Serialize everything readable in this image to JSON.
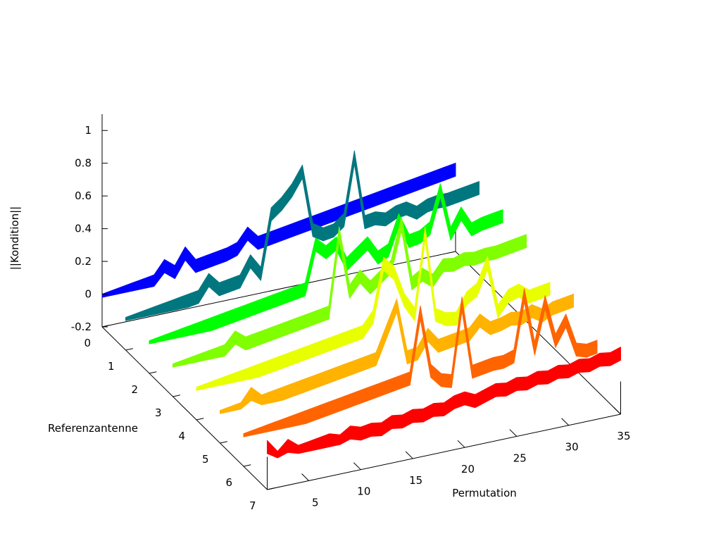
{
  "chart_data": {
    "type": "area",
    "title": "",
    "xlabel": "Permutation",
    "ylabel": "Referenzantenne",
    "zlabel": "||Kondition||",
    "x_ticks": [
      "5",
      "10",
      "15",
      "20",
      "25",
      "30",
      "35"
    ],
    "y_ticks": [
      "0",
      "1",
      "2",
      "3",
      "4",
      "5",
      "6",
      "7"
    ],
    "z_ticks": [
      "-0.2",
      "0",
      "0.2",
      "0.4",
      "0.6",
      "0.8",
      "1"
    ],
    "xlim": [
      1,
      35
    ],
    "ylim": [
      0,
      7
    ],
    "zlim": [
      -0.2,
      1.1
    ],
    "grid": false,
    "legend": "none",
    "series": [
      {
        "ref": 0,
        "color": "#0000ff",
        "values": [
          0.0,
          0.01,
          0.02,
          0.03,
          0.04,
          0.05,
          0.13,
          0.08,
          0.18,
          0.09,
          0.1,
          0.11,
          0.12,
          0.14,
          0.22,
          0.15,
          0.16,
          0.17,
          0.18,
          0.19,
          0.2,
          0.21,
          0.22,
          0.23,
          0.24,
          0.25,
          0.26,
          0.27,
          0.28,
          0.29,
          0.3,
          0.31,
          0.32,
          0.33,
          0.34
        ]
      },
      {
        "ref": 1,
        "color": "#00777f",
        "values": [
          0.0,
          0.01,
          0.02,
          0.03,
          0.04,
          0.05,
          0.06,
          0.07,
          0.16,
          0.09,
          0.1,
          0.11,
          0.22,
          0.13,
          0.48,
          0.53,
          0.6,
          0.7,
          0.33,
          0.29,
          0.3,
          0.35,
          0.72,
          0.31,
          0.32,
          0.3,
          0.33,
          0.34,
          0.3,
          0.33,
          0.34,
          0.34,
          0.35,
          0.36,
          0.37
        ]
      },
      {
        "ref": 2,
        "color": "#00ff00",
        "values": [
          0.0,
          0.01,
          0.02,
          0.03,
          0.04,
          0.05,
          0.06,
          0.07,
          0.08,
          0.09,
          0.1,
          0.11,
          0.12,
          0.13,
          0.14,
          0.15,
          0.41,
          0.35,
          0.39,
          0.25,
          0.3,
          0.35,
          0.25,
          0.28,
          0.45,
          0.31,
          0.32,
          0.36,
          0.58,
          0.3,
          0.41,
          0.3,
          0.32,
          0.33,
          0.34
        ]
      },
      {
        "ref": 3,
        "color": "#7fff00",
        "values": [
          0.0,
          0.01,
          0.02,
          0.03,
          0.04,
          0.05,
          0.12,
          0.07,
          0.08,
          0.09,
          0.1,
          0.11,
          0.12,
          0.13,
          0.14,
          0.15,
          0.62,
          0.25,
          0.33,
          0.25,
          0.3,
          0.35,
          0.6,
          0.22,
          0.26,
          0.21,
          0.29,
          0.28,
          0.3,
          0.29,
          0.3,
          0.3,
          0.31,
          0.32,
          0.33
        ]
      },
      {
        "ref": 4,
        "color": "#e8ff00",
        "values": [
          0.0,
          0.01,
          0.02,
          0.03,
          0.04,
          0.05,
          0.06,
          0.07,
          0.08,
          0.09,
          0.1,
          0.11,
          0.12,
          0.13,
          0.14,
          0.15,
          0.16,
          0.24,
          0.55,
          0.48,
          0.3,
          0.2,
          0.68,
          0.17,
          0.13,
          0.12,
          0.23,
          0.27,
          0.42,
          0.11,
          0.19,
          0.21,
          0.16,
          0.17,
          0.18
        ]
      },
      {
        "ref": 5,
        "color": "#ffb200",
        "values": [
          0.0,
          0.01,
          0.02,
          0.1,
          0.04,
          0.05,
          0.06,
          0.07,
          0.08,
          0.09,
          0.1,
          0.11,
          0.12,
          0.13,
          0.14,
          0.15,
          0.3,
          0.45,
          0.12,
          0.13,
          0.23,
          0.15,
          0.16,
          0.17,
          0.18,
          0.25,
          0.19,
          0.2,
          0.22,
          0.21,
          0.24,
          0.2,
          0.23,
          0.24,
          0.25
        ]
      },
      {
        "ref": 6,
        "color": "#ff6400",
        "values": [
          0.0,
          0.01,
          0.02,
          0.03,
          0.04,
          0.05,
          0.06,
          0.07,
          0.08,
          0.09,
          0.1,
          0.11,
          0.12,
          0.13,
          0.14,
          0.15,
          0.16,
          0.55,
          0.18,
          0.11,
          0.09,
          0.55,
          0.12,
          0.13,
          0.14,
          0.14,
          0.16,
          0.52,
          0.18,
          0.45,
          0.2,
          0.31,
          0.12,
          0.1,
          0.11
        ]
      },
      {
        "ref": 7,
        "color": "#ff0000",
        "values": [
          0.1,
          0.02,
          0.08,
          0.03,
          0.04,
          0.05,
          0.06,
          0.04,
          0.08,
          0.06,
          0.07,
          0.06,
          0.09,
          0.08,
          0.1,
          0.09,
          0.11,
          0.1,
          0.13,
          0.14,
          0.11,
          0.13,
          0.15,
          0.14,
          0.16,
          0.15,
          0.17,
          0.16,
          0.18,
          0.17,
          0.19,
          0.18,
          0.2,
          0.19,
          0.21
        ]
      }
    ]
  }
}
